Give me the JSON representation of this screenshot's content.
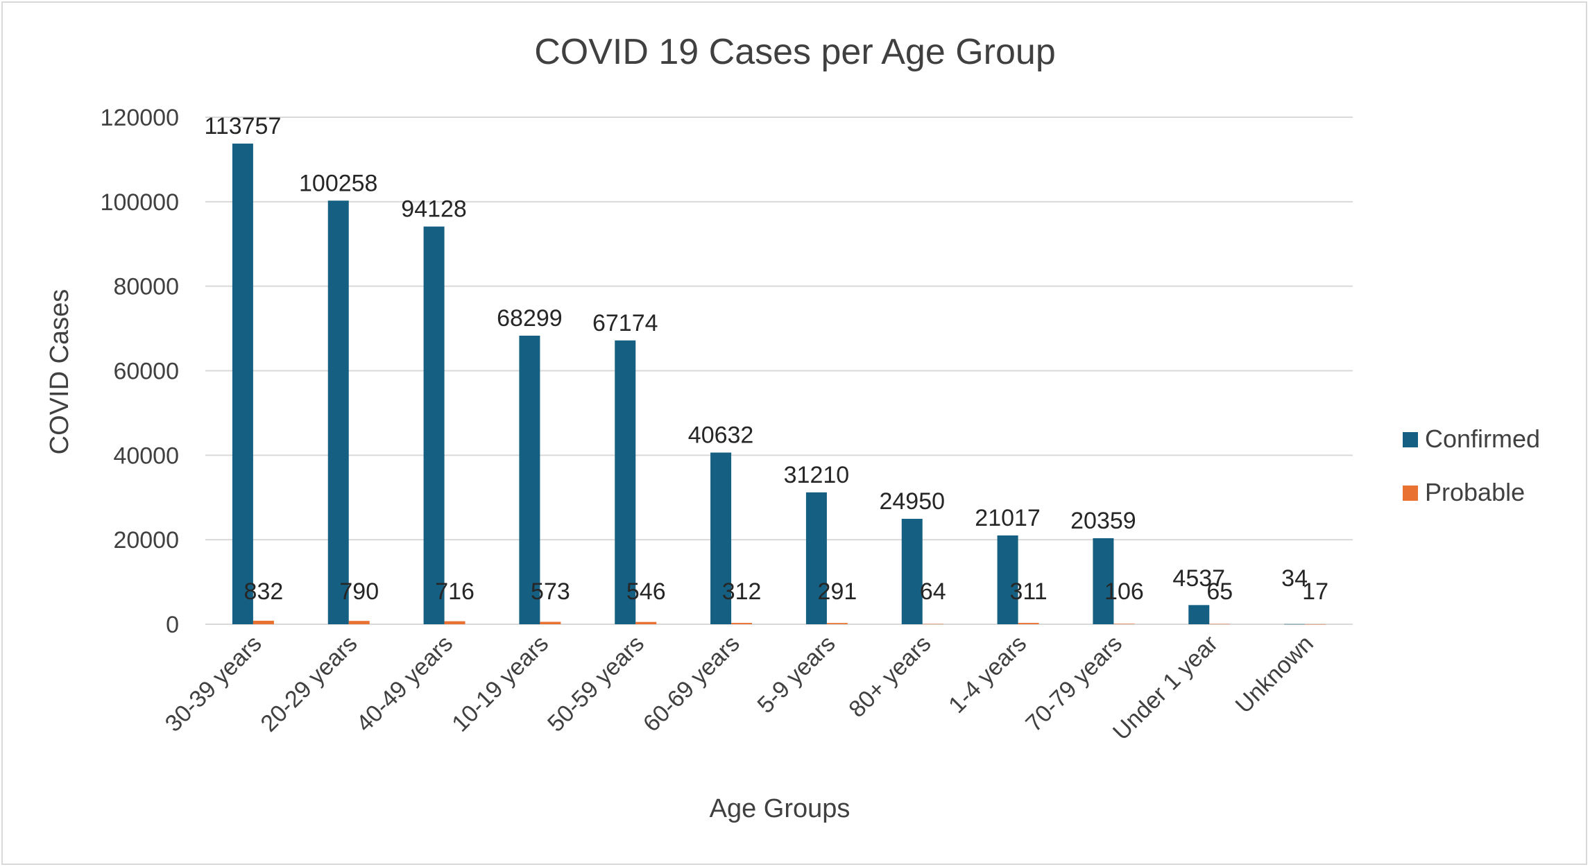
{
  "colors": {
    "confirmed": "#156082",
    "probable": "#E97132",
    "grid": "#d9d9d9",
    "text": "#404040"
  },
  "chart_data": {
    "type": "bar",
    "title": "COVID 19 Cases per Age Group",
    "xlabel": "Age Groups",
    "ylabel": "COVID Cases",
    "ylim": [
      0,
      120000
    ],
    "yticks": [
      "0",
      "20000",
      "40000",
      "60000",
      "80000",
      "100000",
      "120000"
    ],
    "grid": true,
    "legend_position": "right",
    "categories": [
      "30-39 years",
      "20-29 years",
      "40-49 years",
      "10-19 years",
      "50-59 years",
      "60-69 years",
      "5-9 years",
      "80+ years",
      "1-4 years",
      "70-79 years",
      "Under 1 year",
      "Unknown"
    ],
    "series": [
      {
        "name": "Confirmed",
        "values": [
          113757,
          100258,
          94128,
          68299,
          67174,
          40632,
          31210,
          24950,
          21017,
          20359,
          4537,
          34
        ]
      },
      {
        "name": "Probable",
        "values": [
          832,
          790,
          716,
          573,
          546,
          312,
          291,
          64,
          311,
          106,
          65,
          17
        ]
      }
    ]
  }
}
